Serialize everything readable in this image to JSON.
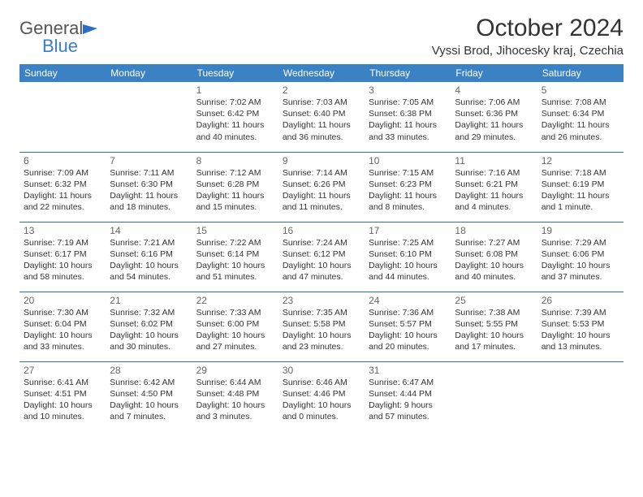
{
  "header": {
    "logo_general": "General",
    "logo_blue": "Blue",
    "month_title": "October 2024",
    "location": "Vyssi Brod, Jihocesky kraj, Czechia"
  },
  "colors": {
    "header_bg": "#3b82c4",
    "row_border": "#2a6fbf",
    "logo_blue": "#3b7cc4"
  },
  "weekdays": [
    "Sunday",
    "Monday",
    "Tuesday",
    "Wednesday",
    "Thursday",
    "Friday",
    "Saturday"
  ],
  "weeks": [
    [
      null,
      null,
      {
        "n": "1",
        "l1": "Sunrise: 7:02 AM",
        "l2": "Sunset: 6:42 PM",
        "l3": "Daylight: 11 hours",
        "l4": "and 40 minutes."
      },
      {
        "n": "2",
        "l1": "Sunrise: 7:03 AM",
        "l2": "Sunset: 6:40 PM",
        "l3": "Daylight: 11 hours",
        "l4": "and 36 minutes."
      },
      {
        "n": "3",
        "l1": "Sunrise: 7:05 AM",
        "l2": "Sunset: 6:38 PM",
        "l3": "Daylight: 11 hours",
        "l4": "and 33 minutes."
      },
      {
        "n": "4",
        "l1": "Sunrise: 7:06 AM",
        "l2": "Sunset: 6:36 PM",
        "l3": "Daylight: 11 hours",
        "l4": "and 29 minutes."
      },
      {
        "n": "5",
        "l1": "Sunrise: 7:08 AM",
        "l2": "Sunset: 6:34 PM",
        "l3": "Daylight: 11 hours",
        "l4": "and 26 minutes."
      }
    ],
    [
      {
        "n": "6",
        "l1": "Sunrise: 7:09 AM",
        "l2": "Sunset: 6:32 PM",
        "l3": "Daylight: 11 hours",
        "l4": "and 22 minutes."
      },
      {
        "n": "7",
        "l1": "Sunrise: 7:11 AM",
        "l2": "Sunset: 6:30 PM",
        "l3": "Daylight: 11 hours",
        "l4": "and 18 minutes."
      },
      {
        "n": "8",
        "l1": "Sunrise: 7:12 AM",
        "l2": "Sunset: 6:28 PM",
        "l3": "Daylight: 11 hours",
        "l4": "and 15 minutes."
      },
      {
        "n": "9",
        "l1": "Sunrise: 7:14 AM",
        "l2": "Sunset: 6:26 PM",
        "l3": "Daylight: 11 hours",
        "l4": "and 11 minutes."
      },
      {
        "n": "10",
        "l1": "Sunrise: 7:15 AM",
        "l2": "Sunset: 6:23 PM",
        "l3": "Daylight: 11 hours",
        "l4": "and 8 minutes."
      },
      {
        "n": "11",
        "l1": "Sunrise: 7:16 AM",
        "l2": "Sunset: 6:21 PM",
        "l3": "Daylight: 11 hours",
        "l4": "and 4 minutes."
      },
      {
        "n": "12",
        "l1": "Sunrise: 7:18 AM",
        "l2": "Sunset: 6:19 PM",
        "l3": "Daylight: 11 hours",
        "l4": "and 1 minute."
      }
    ],
    [
      {
        "n": "13",
        "l1": "Sunrise: 7:19 AM",
        "l2": "Sunset: 6:17 PM",
        "l3": "Daylight: 10 hours",
        "l4": "and 58 minutes."
      },
      {
        "n": "14",
        "l1": "Sunrise: 7:21 AM",
        "l2": "Sunset: 6:16 PM",
        "l3": "Daylight: 10 hours",
        "l4": "and 54 minutes."
      },
      {
        "n": "15",
        "l1": "Sunrise: 7:22 AM",
        "l2": "Sunset: 6:14 PM",
        "l3": "Daylight: 10 hours",
        "l4": "and 51 minutes."
      },
      {
        "n": "16",
        "l1": "Sunrise: 7:24 AM",
        "l2": "Sunset: 6:12 PM",
        "l3": "Daylight: 10 hours",
        "l4": "and 47 minutes."
      },
      {
        "n": "17",
        "l1": "Sunrise: 7:25 AM",
        "l2": "Sunset: 6:10 PM",
        "l3": "Daylight: 10 hours",
        "l4": "and 44 minutes."
      },
      {
        "n": "18",
        "l1": "Sunrise: 7:27 AM",
        "l2": "Sunset: 6:08 PM",
        "l3": "Daylight: 10 hours",
        "l4": "and 40 minutes."
      },
      {
        "n": "19",
        "l1": "Sunrise: 7:29 AM",
        "l2": "Sunset: 6:06 PM",
        "l3": "Daylight: 10 hours",
        "l4": "and 37 minutes."
      }
    ],
    [
      {
        "n": "20",
        "l1": "Sunrise: 7:30 AM",
        "l2": "Sunset: 6:04 PM",
        "l3": "Daylight: 10 hours",
        "l4": "and 33 minutes."
      },
      {
        "n": "21",
        "l1": "Sunrise: 7:32 AM",
        "l2": "Sunset: 6:02 PM",
        "l3": "Daylight: 10 hours",
        "l4": "and 30 minutes."
      },
      {
        "n": "22",
        "l1": "Sunrise: 7:33 AM",
        "l2": "Sunset: 6:00 PM",
        "l3": "Daylight: 10 hours",
        "l4": "and 27 minutes."
      },
      {
        "n": "23",
        "l1": "Sunrise: 7:35 AM",
        "l2": "Sunset: 5:58 PM",
        "l3": "Daylight: 10 hours",
        "l4": "and 23 minutes."
      },
      {
        "n": "24",
        "l1": "Sunrise: 7:36 AM",
        "l2": "Sunset: 5:57 PM",
        "l3": "Daylight: 10 hours",
        "l4": "and 20 minutes."
      },
      {
        "n": "25",
        "l1": "Sunrise: 7:38 AM",
        "l2": "Sunset: 5:55 PM",
        "l3": "Daylight: 10 hours",
        "l4": "and 17 minutes."
      },
      {
        "n": "26",
        "l1": "Sunrise: 7:39 AM",
        "l2": "Sunset: 5:53 PM",
        "l3": "Daylight: 10 hours",
        "l4": "and 13 minutes."
      }
    ],
    [
      {
        "n": "27",
        "l1": "Sunrise: 6:41 AM",
        "l2": "Sunset: 4:51 PM",
        "l3": "Daylight: 10 hours",
        "l4": "and 10 minutes."
      },
      {
        "n": "28",
        "l1": "Sunrise: 6:42 AM",
        "l2": "Sunset: 4:50 PM",
        "l3": "Daylight: 10 hours",
        "l4": "and 7 minutes."
      },
      {
        "n": "29",
        "l1": "Sunrise: 6:44 AM",
        "l2": "Sunset: 4:48 PM",
        "l3": "Daylight: 10 hours",
        "l4": "and 3 minutes."
      },
      {
        "n": "30",
        "l1": "Sunrise: 6:46 AM",
        "l2": "Sunset: 4:46 PM",
        "l3": "Daylight: 10 hours",
        "l4": "and 0 minutes."
      },
      {
        "n": "31",
        "l1": "Sunrise: 6:47 AM",
        "l2": "Sunset: 4:44 PM",
        "l3": "Daylight: 9 hours",
        "l4": "and 57 minutes."
      },
      null,
      null
    ]
  ]
}
